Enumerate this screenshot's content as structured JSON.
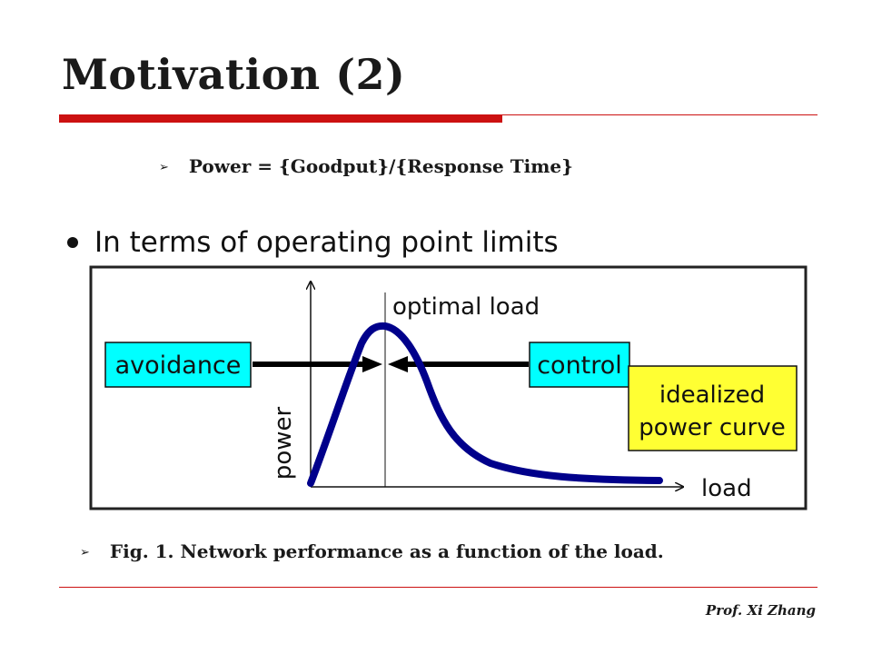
{
  "slide": {
    "title": "Motivation (2)",
    "bullet_power": "Power = {Goodput}/{Response Time}",
    "caption": "Fig. 1. Network performance as a function of the load.",
    "footer": "Prof. Xi Zhang"
  },
  "diagram": {
    "heading": "In terms of operating point limits",
    "optimal_label": "optimal load",
    "avoidance_label": "avoidance",
    "control_label": "control",
    "idealized_line1": "idealized",
    "idealized_line2": "power curve",
    "y_axis_label": "power",
    "x_axis_label": "load",
    "colors": {
      "curve": "#00008b",
      "box_cyan": "#00ffff",
      "box_yellow": "#ffff33",
      "accent_red": "#cc1111"
    }
  }
}
